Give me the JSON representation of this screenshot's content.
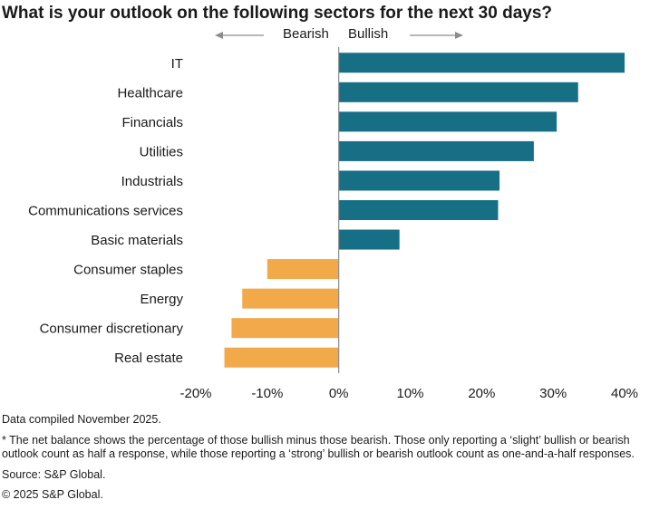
{
  "header": {
    "title": "What is your outlook on the following  sectors for the next 30 days?",
    "bearish_label": "Bearish",
    "bullish_label": "Bullish"
  },
  "colors": {
    "positive": "#166f84",
    "negative": "#f2a94a",
    "axis": "#8c8c8c",
    "arrow": "#8c8c8c"
  },
  "chart_data": {
    "type": "bar",
    "orientation": "horizontal",
    "title": "What is your outlook on the following  sectors for the next 30 days?",
    "xlabel": "",
    "ylabel": "",
    "xlim": [
      -20,
      40
    ],
    "xticks": [
      -20,
      -10,
      0,
      10,
      20,
      30,
      40
    ],
    "xtick_labels": [
      "-20%",
      "-10%",
      "0%",
      "10%",
      "20%",
      "30%",
      "40%"
    ],
    "categories": [
      "IT",
      "Healthcare",
      "Financials",
      "Utilities",
      "Industrials",
      "Communications services",
      "Basic materials",
      "Consumer staples",
      "Energy",
      "Consumer discretionary",
      "Real estate"
    ],
    "values": [
      40,
      33.5,
      30.5,
      27.3,
      22.5,
      22.3,
      8.5,
      -10,
      -13.5,
      -15,
      -16
    ],
    "grid": false,
    "legend": "none"
  },
  "notes": {
    "compiled": "Data compiled November 2025.",
    "footnote": "* The net balance shows the percentage of those bullish minus those bearish. Those only reporting a ‘slight’ bullish or bearish outlook count as half a response, while those reporting a ‘strong’ bullish or bearish outlook count as one-and-a-half responses.",
    "source": "Source: S&P Global.",
    "copyright": "© 2025 S&P Global."
  }
}
